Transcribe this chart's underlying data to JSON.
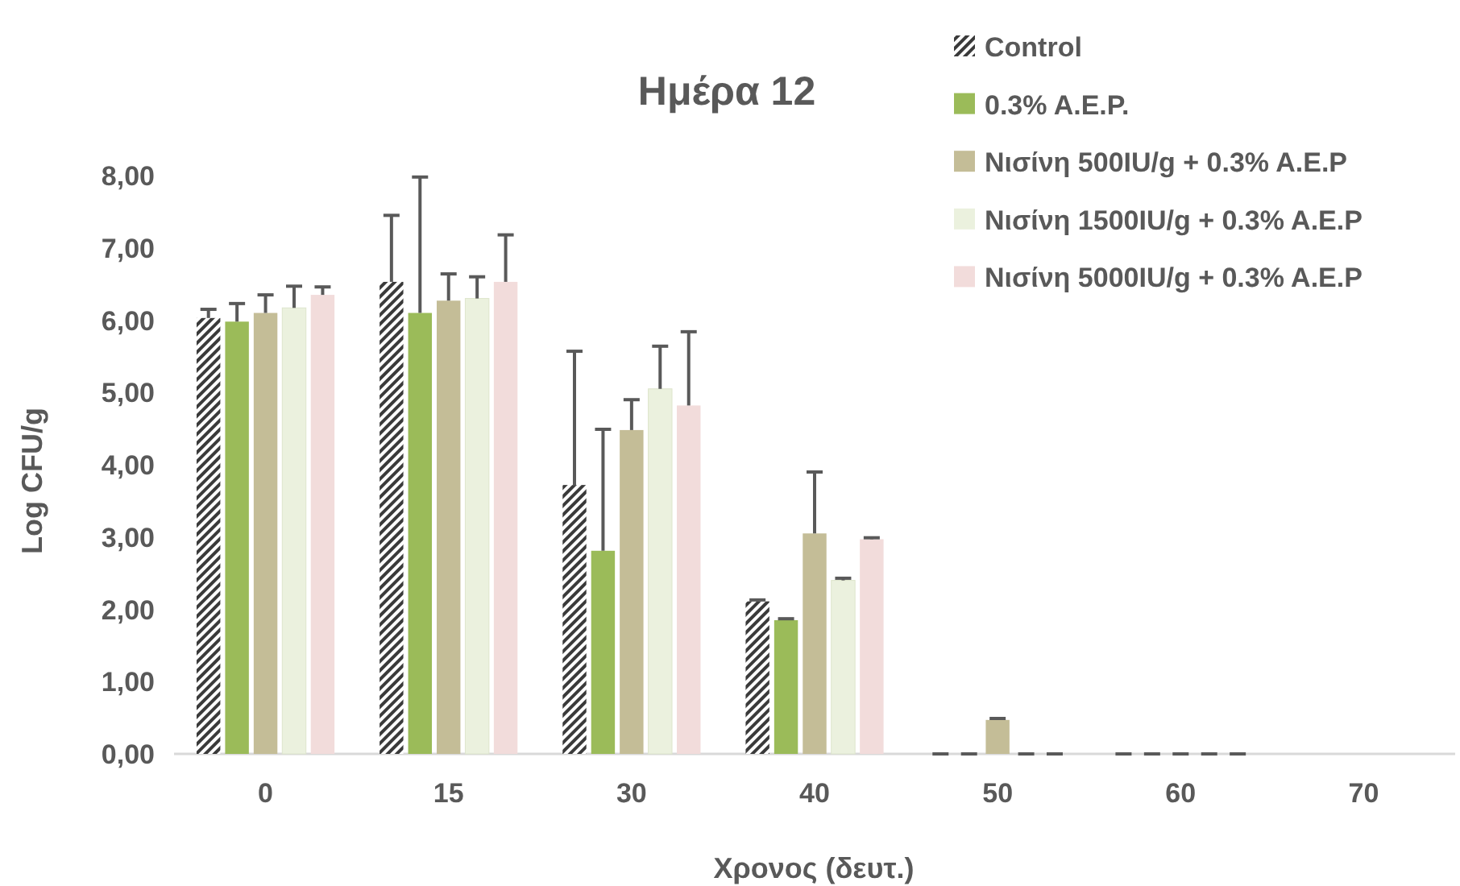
{
  "chart_data": {
    "type": "bar",
    "title": "Ημέρα 12",
    "xlabel": "Χρονος (δευτ.)",
    "ylabel": "Log CFU/g",
    "categories": [
      "0",
      "15",
      "30",
      "40",
      "50",
      "60",
      "70"
    ],
    "series": [
      {
        "name": "Control",
        "color": "#3a3a3a",
        "values": [
          6.03,
          6.53,
          3.72,
          2.11,
          0,
          0,
          null
        ],
        "errors": [
          0.12,
          0.92,
          1.85,
          0.02,
          0,
          0,
          null
        ]
      },
      {
        "name": "0.3% A.E.P.",
        "color": "#9bbb59",
        "values": [
          5.98,
          6.1,
          2.81,
          1.85,
          0,
          0,
          null
        ],
        "errors": [
          0.25,
          1.88,
          1.68,
          0.02,
          0,
          0,
          null
        ]
      },
      {
        "name": "Νισίνη 500IU/g + 0.3% A.E.P",
        "color": "#c4bd97",
        "values": [
          6.1,
          6.27,
          4.48,
          3.05,
          0.47,
          0,
          null
        ],
        "errors": [
          0.25,
          0.37,
          0.42,
          0.85,
          0.02,
          0,
          null
        ]
      },
      {
        "name": "Νισίνη 1500IU/g + 0.3% A.E.P",
        "color": "#ebf1de",
        "values": [
          6.17,
          6.3,
          5.05,
          2.4,
          0,
          0,
          null
        ],
        "errors": [
          0.3,
          0.3,
          0.59,
          0.03,
          0,
          0,
          null
        ]
      },
      {
        "name": "Νισίνη 5000IU/g + 0.3% A.E.P",
        "color": "#f2dcdb",
        "values": [
          6.35,
          6.53,
          4.82,
          2.97,
          0,
          0,
          null
        ],
        "errors": [
          0.11,
          0.65,
          1.02,
          0.02,
          0,
          0,
          null
        ]
      }
    ],
    "ylim": [
      0,
      8
    ],
    "yticks": [
      {
        "value": 0,
        "label": "0,00"
      },
      {
        "value": 1,
        "label": "1,00"
      },
      {
        "value": 2,
        "label": "2,00"
      },
      {
        "value": 3,
        "label": "3,00"
      },
      {
        "value": 4,
        "label": "4,00"
      },
      {
        "value": 5,
        "label": "5,00"
      },
      {
        "value": 6,
        "label": "6,00"
      },
      {
        "value": 7,
        "label": "7,00"
      },
      {
        "value": 8,
        "label": "8,00"
      }
    ],
    "legend": "top right"
  }
}
